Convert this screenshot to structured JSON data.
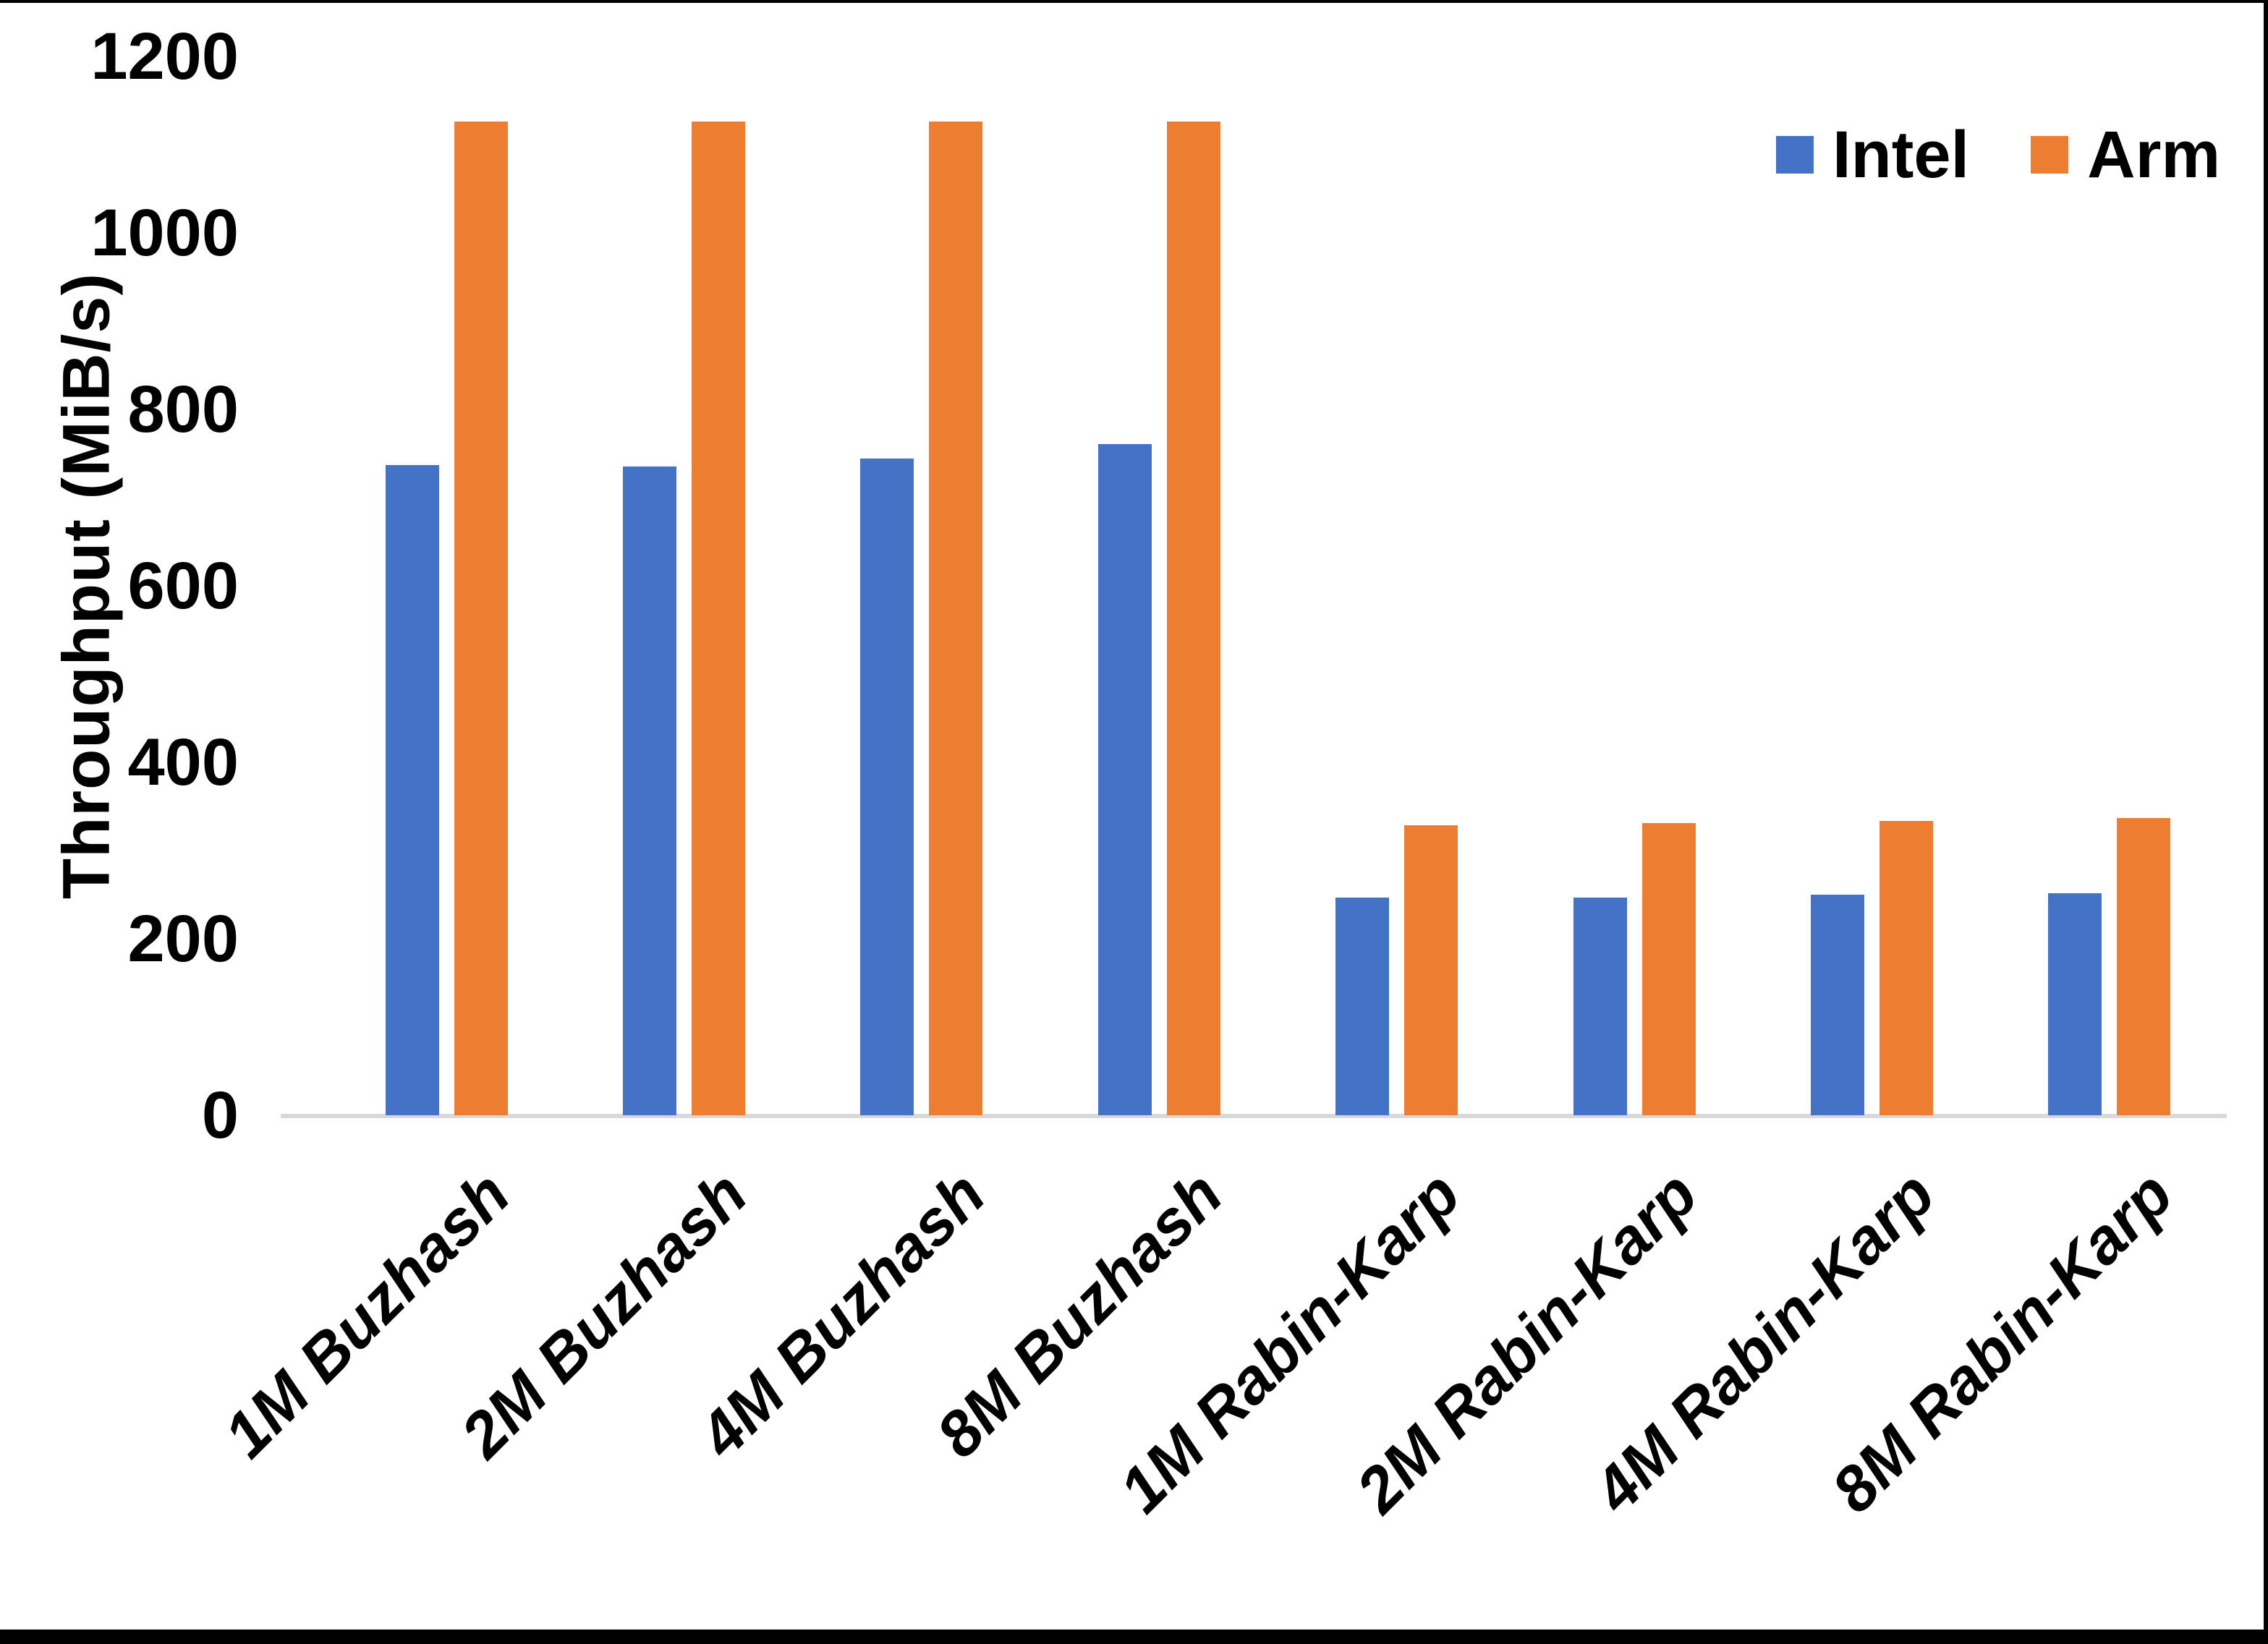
{
  "chart_data": {
    "type": "bar",
    "title": "",
    "xlabel": "",
    "ylabel": "Throughput (MiB/s)",
    "ylim": [
      0,
      1200
    ],
    "yticks": [
      0,
      200,
      400,
      600,
      800,
      1000,
      1200
    ],
    "grid": false,
    "legend_position": "top-right",
    "categories": [
      "1M Buzhash",
      "2M Buzhash",
      "4M Buzhash",
      "8M Buzhash",
      "1M Rabin-Karp",
      "2M Rabin-Karp",
      "4M Rabin-Karp",
      "8M Rabin-Karp"
    ],
    "series": [
      {
        "name": "Intel",
        "color": "#4472C4",
        "values": [
          737,
          735,
          744,
          761,
          247,
          247,
          250,
          252
        ]
      },
      {
        "name": "Arm",
        "color": "#ED7D31",
        "values": [
          1126,
          1126,
          1126,
          1126,
          329,
          331,
          334,
          337
        ]
      }
    ],
    "axis_line_color": "#D9D9D9",
    "text_color": "#000000",
    "background_color": "#FFFFFF"
  }
}
